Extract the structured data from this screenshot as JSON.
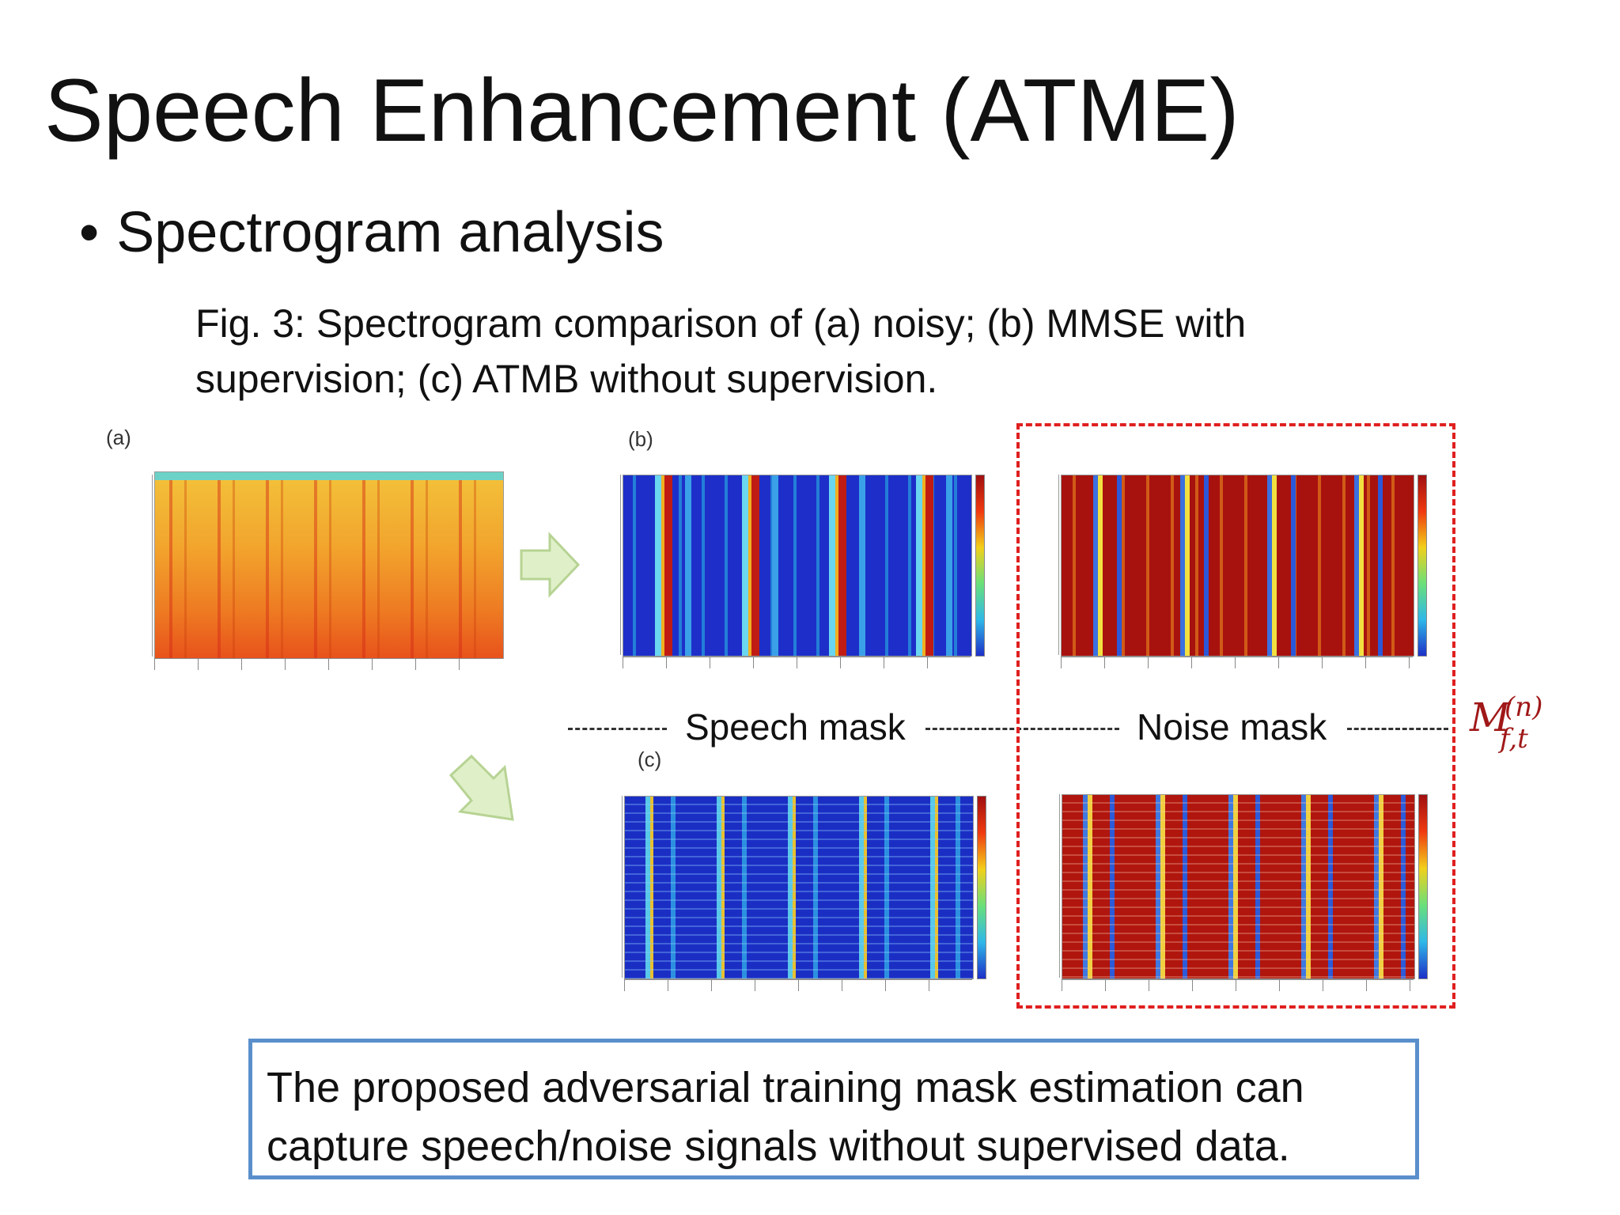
{
  "slide": {
    "title": "Speech Enhancement (ATME)",
    "bullet": "Spectrogram analysis",
    "caption_lines": [
      "Fig. 3: Spectrogram comparison of (a) noisy; (b) MMSE with",
      "supervision; (c) ATMB without supervision."
    ],
    "panel_labels": {
      "a": "(a)",
      "b": "(b)",
      "c": "(c)"
    },
    "speech_mask_label": "Speech mask",
    "noise_mask_label": "Noise mask",
    "formula": {
      "base": "M",
      "superscript": "(n)",
      "subscript": "f,t"
    },
    "conclusion_lines": [
      "The proposed adversarial training mask estimation can",
      "capture speech/noise signals without supervised data."
    ]
  },
  "colors": {
    "highlight_box": "#e02020",
    "formula": "#a01818",
    "conclusion_border": "#5b8fcc",
    "arrow_fill": "#dff0c8",
    "arrow_stroke": "#b7d394"
  }
}
